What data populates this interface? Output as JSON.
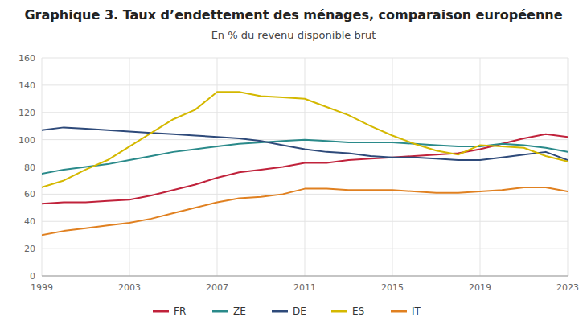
{
  "chart_data": {
    "type": "line",
    "title": "Graphique 3. Taux d’endettement des ménages, comparaison européenne",
    "subtitle": "En % du revenu disponible brut",
    "x": [
      1999,
      2000,
      2001,
      2002,
      2003,
      2004,
      2005,
      2006,
      2007,
      2008,
      2009,
      2010,
      2011,
      2012,
      2013,
      2014,
      2015,
      2016,
      2017,
      2018,
      2019,
      2020,
      2021,
      2022,
      2023
    ],
    "series": [
      {
        "name": "FR",
        "color": "#c0223b",
        "values": [
          53,
          54,
          54,
          55,
          56,
          59,
          63,
          67,
          72,
          76,
          78,
          80,
          83,
          83,
          85,
          86,
          87,
          88,
          89,
          90,
          93,
          97,
          101,
          104,
          102
        ]
      },
      {
        "name": "ZE",
        "color": "#2a8a8a",
        "values": [
          75,
          78,
          80,
          82,
          85,
          88,
          91,
          93,
          95,
          97,
          98,
          99,
          100,
          99,
          98,
          98,
          98,
          97,
          96,
          95,
          95,
          97,
          96,
          94,
          91
        ]
      },
      {
        "name": "DE",
        "color": "#2e4a7a",
        "values": [
          107,
          109,
          108,
          107,
          106,
          105,
          104,
          103,
          102,
          101,
          99,
          96,
          93,
          91,
          90,
          88,
          87,
          87,
          86,
          85,
          85,
          87,
          89,
          91,
          85
        ]
      },
      {
        "name": "ES",
        "color": "#d4b800",
        "values": [
          65,
          70,
          78,
          85,
          95,
          105,
          115,
          122,
          135,
          135,
          132,
          131,
          130,
          124,
          118,
          110,
          103,
          97,
          92,
          89,
          96,
          95,
          94,
          88,
          84
        ]
      },
      {
        "name": "IT",
        "color": "#e08020",
        "values": [
          30,
          33,
          35,
          37,
          39,
          42,
          46,
          50,
          54,
          57,
          58,
          60,
          64,
          64,
          63,
          63,
          63,
          62,
          61,
          61,
          62,
          63,
          65,
          65,
          62
        ]
      }
    ],
    "xlim": [
      1999,
      2023
    ],
    "ylim": [
      0,
      160
    ],
    "xticks": [
      1999,
      2003,
      2007,
      2011,
      2015,
      2019,
      2023
    ],
    "yticks": [
      0,
      20,
      40,
      60,
      80,
      100,
      120,
      140,
      160
    ],
    "grid": true,
    "legend": "bottom"
  }
}
